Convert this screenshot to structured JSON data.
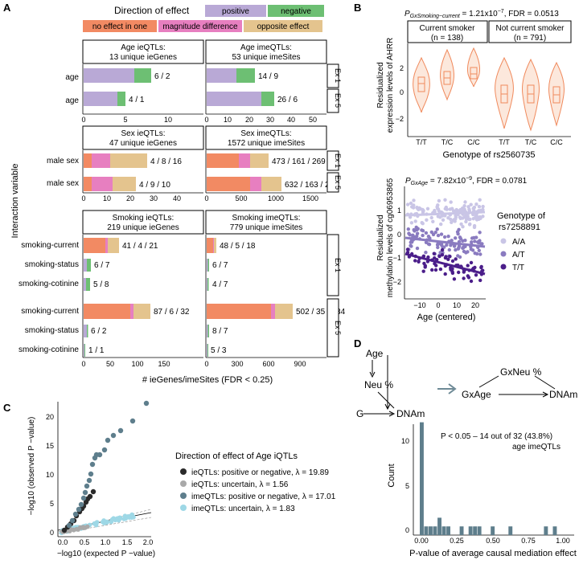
{
  "panel_a": {
    "label": "A",
    "legend": {
      "title": "Direction of effect",
      "positive": "positive",
      "negative": "negative",
      "no_effect": "no effect in one",
      "magnitude": "magnitude difference",
      "opposite": "opposite effect"
    },
    "y_axis_title": "Interaction variable",
    "x_axis_title": "# ieGenes/imeSites (FDR < 0.25)",
    "ex1": "Ex 1",
    "ex5": "Ex 5",
    "age": {
      "ie_title1": "Age ieQTLs:",
      "ie_title2": "13 unique ieGenes",
      "ime_title1": "Age imeQTLs:",
      "ime_title2": "53 unique imeSites",
      "row_label": "age",
      "ie_ex1": "6 / 2",
      "ie_ex5": "4 / 1",
      "ime_ex1": "14 / 9",
      "ime_ex5": "26 / 6",
      "ie_ticks": [
        "0",
        "5",
        "10"
      ],
      "ime_ticks": [
        "0",
        "10",
        "20",
        "30",
        "40",
        "50"
      ]
    },
    "sex": {
      "ie_title1": "Sex ieQTLs:",
      "ie_title2": "47 unique ieGenes",
      "ime_title1": "Sex imeQTLs:",
      "ime_title2": "1572 unique imeSites",
      "row_label": "male sex",
      "ie_ex1": "4 / 8 / 16",
      "ie_ex5": "4 / 9 / 10",
      "ime_ex1": "473 / 161 / 269",
      "ime_ex5": "632 / 163 / 287",
      "ie_ticks": [
        "0",
        "10",
        "20",
        "30",
        "40"
      ],
      "ime_ticks": [
        "0",
        "500",
        "1000",
        "1500"
      ]
    },
    "smoking": {
      "ie_title1": "Smoking ieQTLs:",
      "ie_title2": "219 unique ieGenes",
      "ime_title1": "Smoking imeQTLs:",
      "ime_title2": "779 unique imeSites",
      "rows": [
        "smoking-current",
        "smoking-status",
        "smoking-cotinine",
        "smoking-current",
        "smoking-status",
        "smoking-cotinine"
      ],
      "ie_vals": [
        "41 / 4 / 21",
        "6 / 7",
        "5 / 8",
        "87 / 6 / 32",
        "6 / 2",
        "1 / 1"
      ],
      "ime_vals": [
        "48 / 5 / 18",
        "6 / 7",
        "4 / 7",
        "502 / 35 / 134",
        "8 / 7",
        "5 / 3"
      ],
      "ie_ticks": [
        "0",
        "50",
        "100",
        "150"
      ],
      "ime_ticks": [
        "0",
        "300",
        "600",
        "900"
      ]
    },
    "colors": {
      "positive": "#B9A9D6",
      "negative": "#6DBF73",
      "no_effect": "#F28A63",
      "magnitude": "#E77FC0",
      "opposite": "#E4C48E"
    }
  },
  "panel_b": {
    "label": "B",
    "stat_top": "P",
    "stat_top_sub": "GxSmoking−current",
    "stat_top_rest": " = 1.21x10",
    "stat_top_exp": "−7",
    "stat_top_fdr": ", FDR = 0.0513",
    "strip1_line1": "Current smoker",
    "strip1_line2": "(n = 138)",
    "strip2_line1": "Not current smoker",
    "strip2_line2": "(n = 791)",
    "ylabel1": "Residualized",
    "ylabel2": "expression levels of AHRR",
    "genotypes": [
      "T/T",
      "T/C",
      "C/C",
      "T/T",
      "T/C",
      "C/C"
    ],
    "y_ticks": [
      "2",
      "0",
      "−2"
    ],
    "xlabel": "Genotype of rs2560735",
    "stat_bot": "P",
    "stat_bot_sub": "GxAge",
    "stat_bot_rest": " = 7.82x10",
    "stat_bot_exp": "−9",
    "stat_bot_fdr": ", FDR = 0.0781",
    "ylabel2a": "Residualized",
    "ylabel2b": "methylation levels of cg06953865",
    "y2_ticks": [
      "1",
      "0",
      "−1",
      "−2"
    ],
    "x2_ticks": [
      "−10",
      "0",
      "10",
      "20"
    ],
    "xlabel2": "Age (centered)",
    "legend_title1": "Genotype of",
    "legend_title2": "rs7258891",
    "legend_items": [
      "A/A",
      "A/T",
      "T/T"
    ],
    "colors": {
      "aa": "#C9C5E6",
      "at": "#8A7BC0",
      "tt": "#4B1E8A",
      "violin": "#F08A5D",
      "violin_fill": "#FCE8DC"
    }
  },
  "panel_c": {
    "label": "C",
    "ylabel": "−log10 (observed P −value)",
    "xlabel": "−log10 (expected P −value)",
    "y_ticks": [
      "20",
      "15",
      "10",
      "5",
      "0"
    ],
    "x_ticks": [
      "0.0",
      "0.5",
      "1.0",
      "1.5",
      "2.0"
    ],
    "legend_title": "Direction of effect of Age iQTLs",
    "legend_items": [
      {
        "text": "ieQTLs: positive or negative, λ = 19.89",
        "color": "#2A2A2A"
      },
      {
        "text": "ieQTLs: uncertain, λ = 1.56",
        "color": "#A9A9A9"
      },
      {
        "text": "imeQTLs: positive or negative, λ = 17.01",
        "color": "#5E7E8C"
      },
      {
        "text": "imeQTLs: uncertain, λ = 1.83",
        "color": "#9ED8E6"
      }
    ]
  },
  "panel_d": {
    "label": "D",
    "dag_age": "Age",
    "dag_neu": "Neu %",
    "dag_g": "G",
    "dag_dnam": "DNAm",
    "dag_gxneu": "GxNeu %",
    "dag_gxage": "GxAge",
    "dag_dnam2": "DNAm",
    "annot1": "P < 0.05 – 14 out of 32 (43.8%)",
    "annot2": "age imeQTLs",
    "ylabel": "Count",
    "xlabel": "P-value of average causal mediation effect",
    "y_ticks": [
      "10",
      "5",
      "0"
    ],
    "x_ticks": [
      "0.00",
      "0.25",
      "0.50",
      "0.75",
      "1.00"
    ],
    "bar_color": "#5E7E8C"
  }
}
